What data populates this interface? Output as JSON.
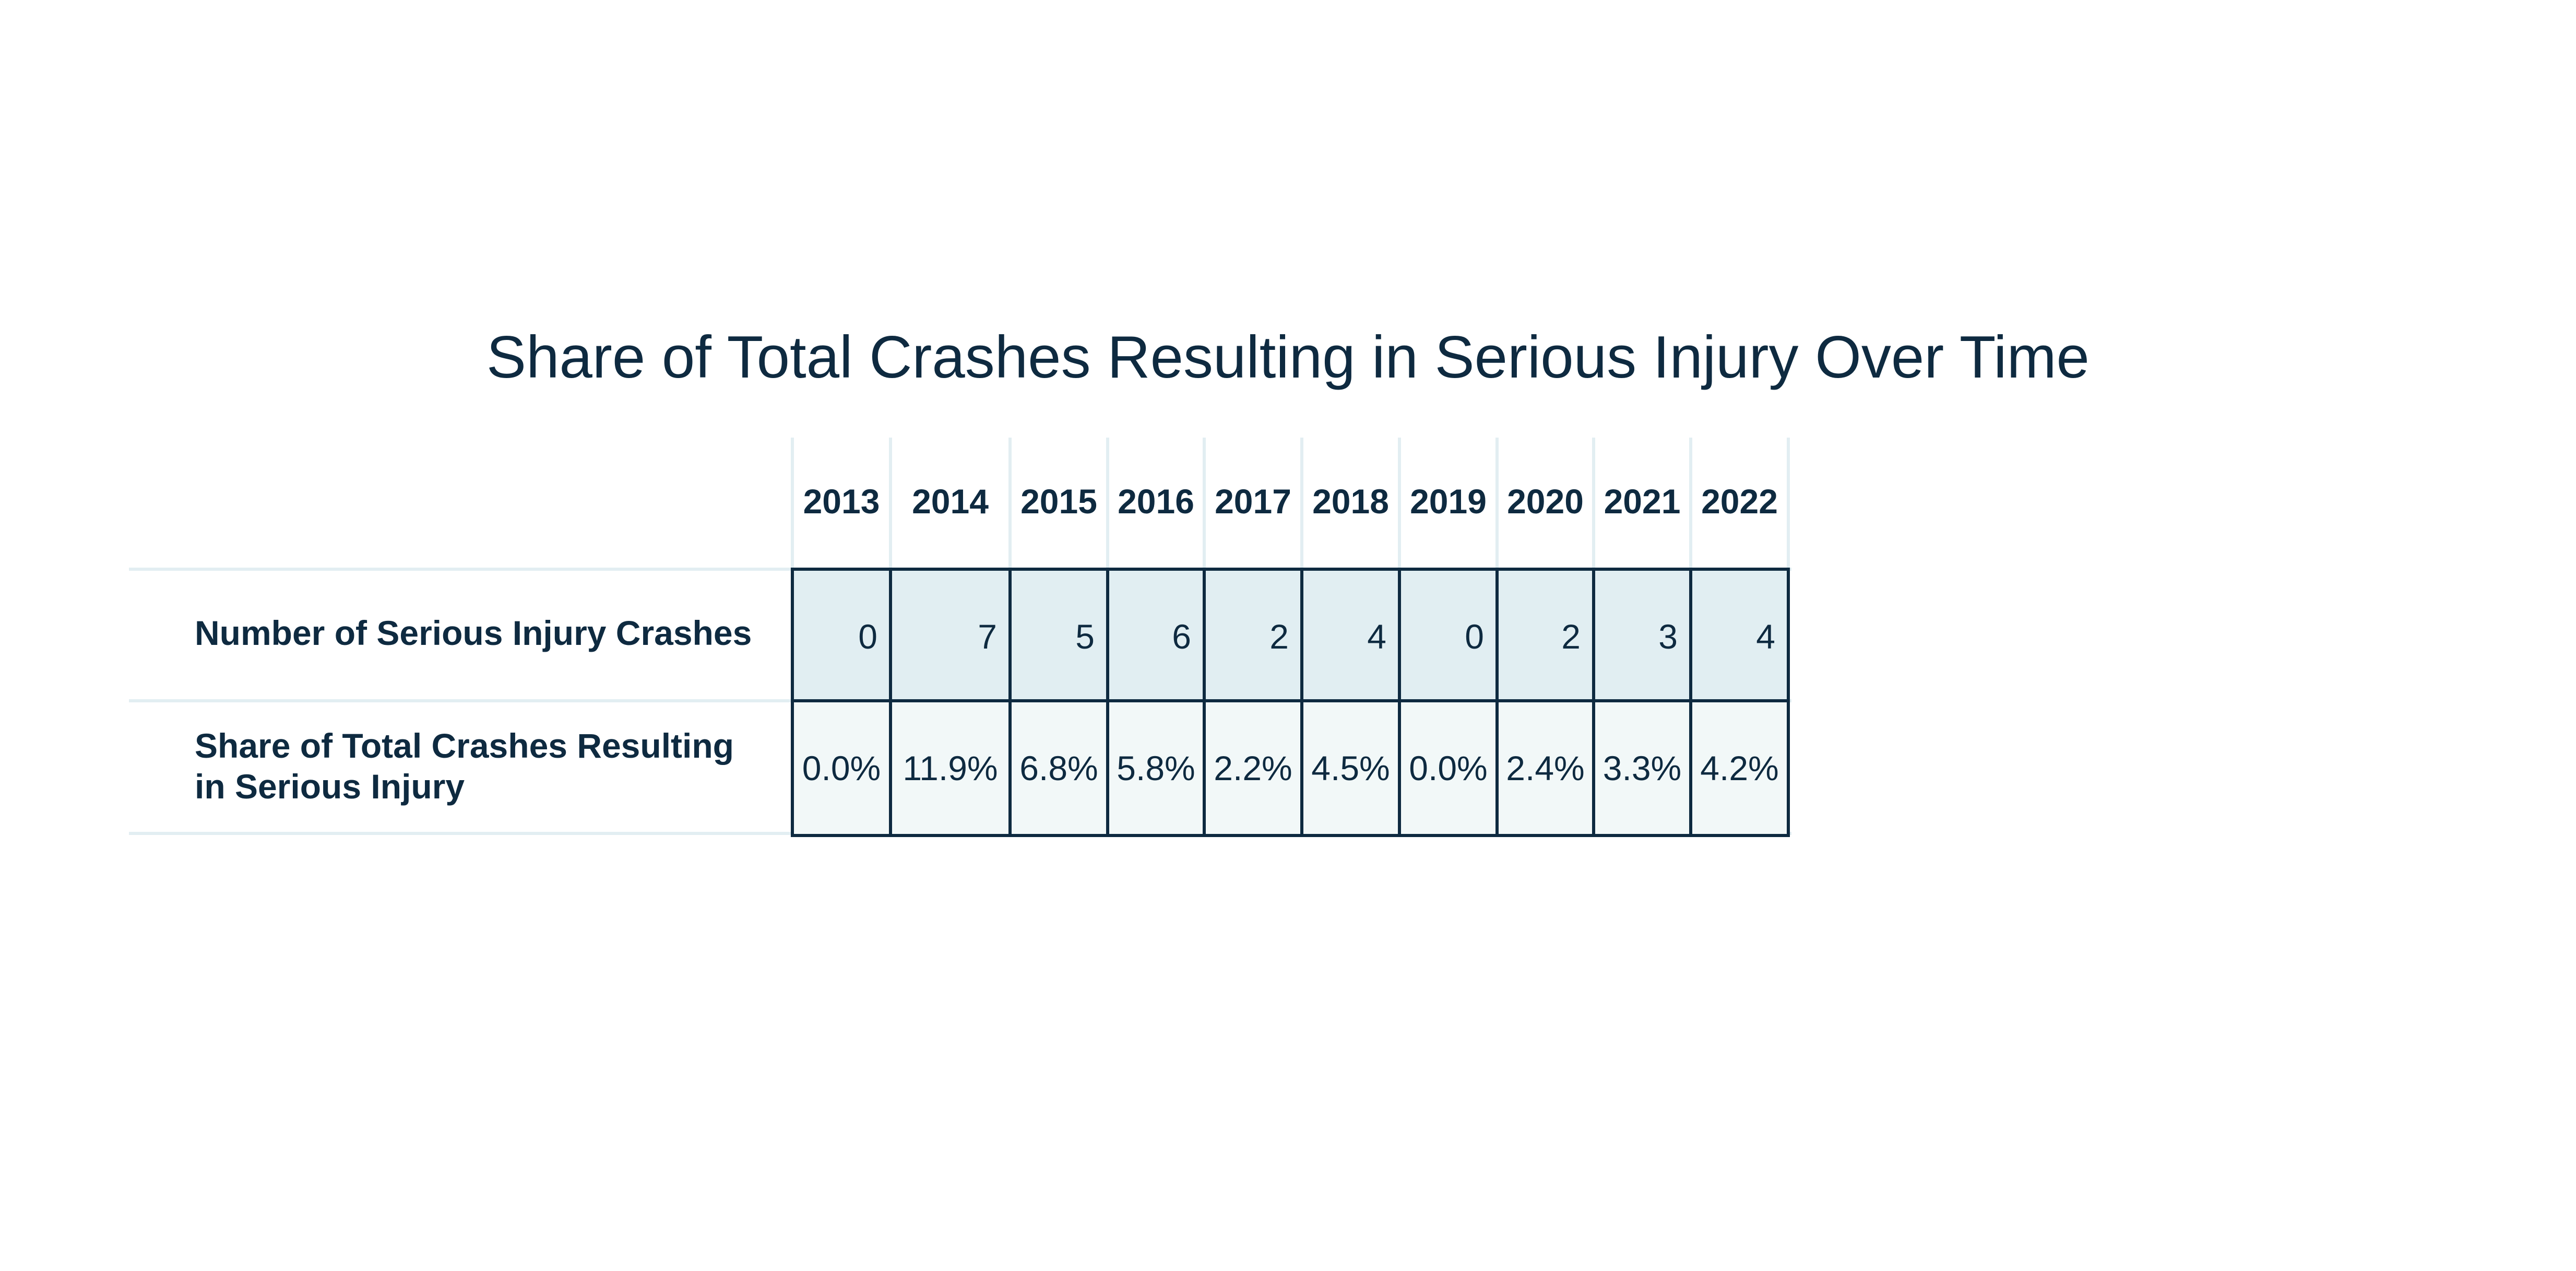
{
  "title": "Share of Total Crashes Resulting in Serious Injury Over Time",
  "colors": {
    "text": "#0e2a40",
    "row1_fill": "#e1eef2",
    "row2_fill": "#f2f8f8",
    "grid_light": "#e2eef2",
    "cell_border": "#0e2a40"
  },
  "chart_data": {
    "type": "table",
    "title": "Share of Total Crashes Resulting in Serious Injury Over Time",
    "columns": [
      "2013",
      "2014",
      "2015",
      "2016",
      "2017",
      "2018",
      "2019",
      "2020",
      "2021",
      "2022"
    ],
    "rows": [
      {
        "label": "Number of Serious Injury Crashes",
        "values": [
          "0",
          "7",
          "5",
          "6",
          "2",
          "4",
          "0",
          "2",
          "3",
          "4"
        ]
      },
      {
        "label_line1": "Share of Total Crashes Resulting",
        "label_line2": "in Serious Injury",
        "values": [
          "0.0%",
          "11.9%",
          "6.8%",
          "5.8%",
          "2.2%",
          "4.5%",
          "0.0%",
          "2.4%",
          "3.3%",
          "4.2%"
        ]
      }
    ]
  }
}
